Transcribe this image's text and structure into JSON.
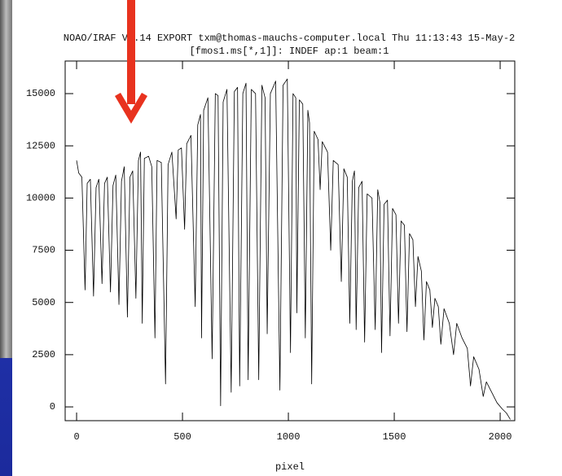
{
  "chart_data": {
    "type": "line",
    "title": "NOAO/IRAF V2.14 EXPORT txm@thomas-mauchs-computer.local Thu 11:13:43 15-May-2",
    "subtitle": "[fmos1.ms[*,1]]:  INDEF ap:1 beam:1",
    "x_label": "pixel",
    "x": [
      0,
      10,
      25,
      40,
      50,
      65,
      80,
      92,
      105,
      120,
      132,
      145,
      160,
      172,
      185,
      200,
      212,
      225,
      240,
      252,
      265,
      280,
      292,
      302,
      310,
      320,
      340,
      355,
      370,
      380,
      400,
      420,
      432,
      450,
      470,
      480,
      495,
      510,
      520,
      540,
      560,
      572,
      585,
      590,
      600,
      620,
      640,
      655,
      668,
      680,
      692,
      710,
      730,
      745,
      760,
      770,
      785,
      800,
      810,
      825,
      845,
      860,
      875,
      890,
      900,
      915,
      940,
      960,
      975,
      995,
      1010,
      1022,
      1035,
      1040,
      1052,
      1068,
      1080,
      1092,
      1100,
      1110,
      1122,
      1140,
      1150,
      1160,
      1185,
      1200,
      1212,
      1235,
      1250,
      1262,
      1278,
      1290,
      1302,
      1312,
      1320,
      1332,
      1348,
      1360,
      1372,
      1395,
      1410,
      1422,
      1432,
      1440,
      1452,
      1468,
      1480,
      1492,
      1508,
      1520,
      1532,
      1548,
      1560,
      1572,
      1588,
      1600,
      1612,
      1628,
      1640,
      1652,
      1668,
      1680,
      1692,
      1708,
      1720,
      1735,
      1760,
      1780,
      1795,
      1820,
      1845,
      1860,
      1875,
      1900,
      1920,
      1935,
      1960,
      1985,
      2010,
      2030,
      2048
    ],
    "values": [
      11800,
      11200,
      11000,
      5600,
      10700,
      10900,
      5300,
      10500,
      10900,
      5900,
      10700,
      11000,
      5500,
      10600,
      11100,
      4900,
      10800,
      11500,
      4300,
      11000,
      11300,
      5200,
      11800,
      12200,
      4000,
      11900,
      12000,
      11500,
      3300,
      11800,
      11700,
      1100,
      11600,
      12200,
      9000,
      12300,
      12400,
      8500,
      12600,
      13000,
      4800,
      13500,
      14000,
      3300,
      14200,
      14800,
      2300,
      15000,
      14900,
      50,
      14600,
      15200,
      700,
      15100,
      15300,
      1000,
      15000,
      15500,
      1300,
      15200,
      15000,
      1300,
      15400,
      14800,
      3500,
      15000,
      15600,
      800,
      15400,
      15700,
      2600,
      15000,
      14800,
      4500,
      14700,
      14500,
      3300,
      14200,
      13600,
      1100,
      13200,
      12800,
      10400,
      12700,
      12200,
      7500,
      11800,
      11600,
      6000,
      11400,
      11000,
      4000,
      10800,
      11300,
      3700,
      10500,
      10800,
      3100,
      10200,
      10000,
      3700,
      10400,
      9800,
      2600,
      9700,
      9900,
      3400,
      9500,
      9200,
      4000,
      8900,
      8700,
      3600,
      8300,
      8000,
      4800,
      7200,
      6500,
      3200,
      6000,
      5600,
      3800,
      5200,
      4800,
      3000,
      4700,
      4000,
      2500,
      4000,
      3300,
      2800,
      1000,
      2400,
      1800,
      500,
      1200,
      700,
      200,
      -100,
      -300,
      -600
    ],
    "color": "#000000",
    "xlim": [
      -54,
      2069
    ],
    "ylim": [
      -660,
      16560
    ],
    "xticks": [
      0,
      500,
      1000,
      1500,
      2000
    ],
    "yticks": [
      0,
      2500,
      5000,
      7500,
      10000,
      12500,
      15000
    ]
  }
}
